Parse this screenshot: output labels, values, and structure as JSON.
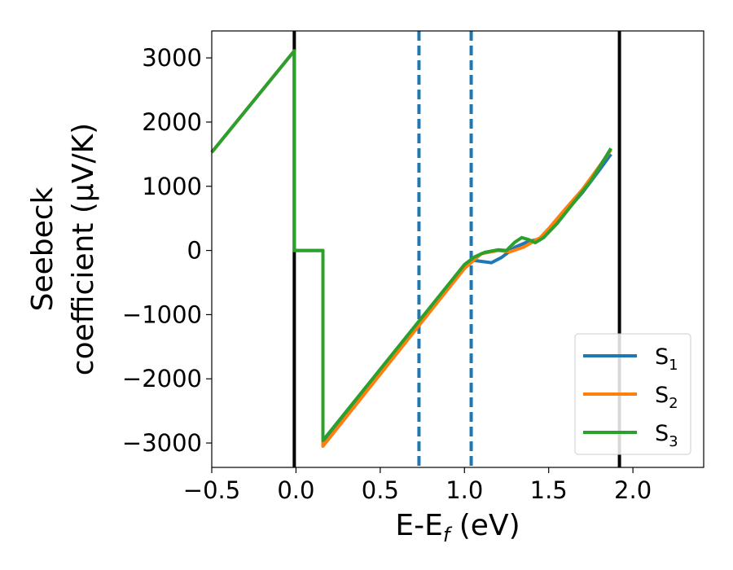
{
  "chart_data": {
    "type": "line",
    "xlabel": "E-E",
    "xlabel_sub": "f",
    "xlabel_unit": " (eV)",
    "ylabel_line1": "Seebeck",
    "ylabel_line2": "coefficient  (μV/K)",
    "xlim": [
      -0.5,
      2.42
    ],
    "ylim": [
      -3380,
      3420
    ],
    "xticks": [
      -0.5,
      0.0,
      0.5,
      1.0,
      1.5,
      2.0
    ],
    "xtick_labels": [
      "−0.5",
      "0.0",
      "0.5",
      "1.0",
      "1.5",
      "2.0"
    ],
    "yticks": [
      -3000,
      -2000,
      -1000,
      0,
      1000,
      2000,
      3000
    ],
    "ytick_labels": [
      "−3000",
      "−2000",
      "−1000",
      "0",
      "1000",
      "2000",
      "3000"
    ],
    "grid": false,
    "legend_position": "bottom-right",
    "vlines": [
      {
        "x": -0.01,
        "style": "solid",
        "color": "#000000"
      },
      {
        "x": 1.92,
        "style": "solid",
        "color": "#000000"
      },
      {
        "x": 0.73,
        "style": "dashed",
        "color": "#1f77b4"
      },
      {
        "x": 1.04,
        "style": "dashed",
        "color": "#1f77b4"
      }
    ],
    "series": [
      {
        "name": "S",
        "sub": "1",
        "color": "#1f77b4",
        "x": [
          -0.5,
          -0.01,
          -0.01,
          0.16,
          0.16,
          1.04,
          1.1,
          1.16,
          1.22,
          1.3,
          1.38,
          1.45,
          1.5,
          1.6,
          1.7,
          1.8,
          1.87
        ],
        "y": [
          1530,
          3110,
          0,
          0,
          -3020,
          -150,
          -170,
          -190,
          -110,
          50,
          140,
          180,
          300,
          600,
          900,
          1250,
          1500
        ]
      },
      {
        "name": "S",
        "sub": "2",
        "color": "#ff7f0e",
        "x": [
          -0.5,
          -0.01,
          -0.01,
          0.16,
          0.16,
          1.0,
          1.1,
          1.2,
          1.27,
          1.35,
          1.45,
          1.5,
          1.6,
          1.7,
          1.8,
          1.87
        ],
        "y": [
          1530,
          3110,
          0,
          0,
          -3050,
          -280,
          -50,
          0,
          -20,
          50,
          200,
          340,
          650,
          950,
          1310,
          1570
        ]
      },
      {
        "name": "S",
        "sub": "3",
        "color": "#2ca02c",
        "x": [
          -0.5,
          -0.01,
          -0.01,
          0.16,
          0.16,
          1.0,
          1.06,
          1.12,
          1.2,
          1.25,
          1.3,
          1.34,
          1.38,
          1.42,
          1.47,
          1.55,
          1.65,
          1.75,
          1.87
        ],
        "y": [
          1530,
          3110,
          0,
          0,
          -2960,
          -220,
          -100,
          -30,
          10,
          0,
          130,
          200,
          170,
          120,
          200,
          420,
          750,
          1080,
          1590
        ]
      }
    ]
  }
}
